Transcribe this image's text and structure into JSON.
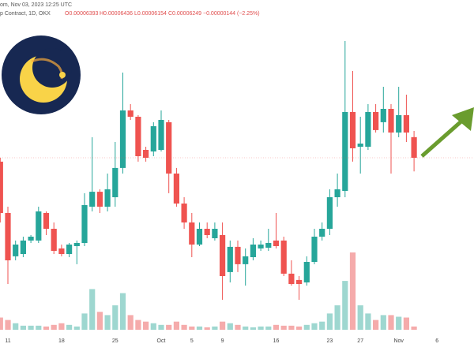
{
  "header": {
    "line1": "om, Nov 03, 2023 12:25 UTC",
    "line2": "p Contract, 1D, OKX",
    "open": "O0.00006393",
    "high": "H0.00006436",
    "low": "L0.00006154",
    "close": "C0.00006249",
    "change": "−0.00000144 (−2.25%)"
  },
  "chart_data": {
    "type": "candlestick",
    "categories": [
      null,
      "11",
      null,
      null,
      null,
      null,
      null,
      null,
      "18",
      null,
      null,
      null,
      null,
      null,
      null,
      "25",
      null,
      null,
      null,
      null,
      null,
      "Oct",
      null,
      null,
      null,
      "5",
      null,
      null,
      null,
      "9",
      null,
      null,
      null,
      null,
      null,
      null,
      "16",
      null,
      null,
      null,
      null,
      null,
      null,
      "23",
      null,
      null,
      null,
      "27",
      null,
      null,
      null,
      null,
      "Nov",
      null,
      null,
      null,
      null,
      "6"
    ],
    "open": [
      6.222e-05,
      5.864e-05,
      5.562e-05,
      5.578e-05,
      5.672e-05,
      5.672e-05,
      5.864e-05,
      5.754e-05,
      5.617e-05,
      5.578e-05,
      5.633e-05,
      5.655e-05,
      5.908e-05,
      6.012e-05,
      5.908e-05,
      5.974e-05,
      6.178e-05,
      6.579e-05,
      6.535e-05,
      6.304e-05,
      6.293e-05,
      6.304e-05,
      6.497e-05,
      6.139e-05,
      5.93e-05,
      5.798e-05,
      5.644e-05,
      5.754e-05,
      5.688e-05,
      5.71e-05,
      5.452e-05,
      5.628e-05,
      5.507e-05,
      5.556e-05,
      5.617e-05,
      5.622e-05,
      5.672e-05,
      5.672e-05,
      5.441e-05,
      5.397e-05,
      5.38e-05,
      5.523e-05,
      5.699e-05,
      5.754e-05,
      5.974e-05,
      6.018e-05,
      6.568e-05,
      6.326e-05,
      6.326e-05,
      6.568e-05,
      6.497e-05,
      6.59e-05,
      6.425e-05,
      6.546e-05,
      6.393e-05,
      null,
      null,
      null
    ],
    "high": [
      6.249e-05,
      5.908e-05,
      5.672e-05,
      5.699e-05,
      5.71e-05,
      5.908e-05,
      5.875e-05,
      5.798e-05,
      5.644e-05,
      5.655e-05,
      5.672e-05,
      6.002e-05,
      6.392e-05,
      6.029e-05,
      6.139e-05,
      6.359e-05,
      6.843e-05,
      6.623e-05,
      6.546e-05,
      6.326e-05,
      6.497e-05,
      6.579e-05,
      6.513e-05,
      6.178e-05,
      5.974e-05,
      5.864e-05,
      5.798e-05,
      5.798e-05,
      5.798e-05,
      5.798e-05,
      5.672e-05,
      5.672e-05,
      5.617e-05,
      5.688e-05,
      5.672e-05,
      5.754e-05,
      5.864e-05,
      5.699e-05,
      5.534e-05,
      5.424e-05,
      5.562e-05,
      5.754e-05,
      5.798e-05,
      6.029e-05,
      6.139e-05,
      7.063e-05,
      6.854e-05,
      6.535e-05,
      6.623e-05,
      6.623e-05,
      6.744e-05,
      6.623e-05,
      6.744e-05,
      6.689e-05,
      6.436e-05,
      null,
      null,
      null
    ],
    "low": [
      5.798e-05,
      5.369e-05,
      5.534e-05,
      5.556e-05,
      5.655e-05,
      5.655e-05,
      5.71e-05,
      5.578e-05,
      5.562e-05,
      5.556e-05,
      5.507e-05,
      5.633e-05,
      5.875e-05,
      5.864e-05,
      5.875e-05,
      5.908e-05,
      6.139e-05,
      6.513e-05,
      6.222e-05,
      6.222e-05,
      6.26e-05,
      6.293e-05,
      6.002e-05,
      5.908e-05,
      5.754e-05,
      5.556e-05,
      5.633e-05,
      5.688e-05,
      5.672e-05,
      5.259e-05,
      5.38e-05,
      5.452e-05,
      5.358e-05,
      5.534e-05,
      5.6e-05,
      5.6e-05,
      5.617e-05,
      5.424e-05,
      5.358e-05,
      5.259e-05,
      5.358e-05,
      5.507e-05,
      5.672e-05,
      5.71e-05,
      5.908e-05,
      5.974e-05,
      6.222e-05,
      6.139e-05,
      6.304e-05,
      6.425e-05,
      6.425e-05,
      6.139e-05,
      6.392e-05,
      6.359e-05,
      6.154e-05,
      null,
      null,
      null
    ],
    "close": [
      5.864e-05,
      5.534e-05,
      5.644e-05,
      5.672e-05,
      5.699e-05,
      5.875e-05,
      5.754e-05,
      5.6e-05,
      5.578e-05,
      5.644e-05,
      5.655e-05,
      5.919e-05,
      6.012e-05,
      5.908e-05,
      6.029e-05,
      6.178e-05,
      6.579e-05,
      6.535e-05,
      6.26e-05,
      6.249e-05,
      6.469e-05,
      6.513e-05,
      6.139e-05,
      5.93e-05,
      5.798e-05,
      5.644e-05,
      5.754e-05,
      5.71e-05,
      5.754e-05,
      5.424e-05,
      5.628e-05,
      5.507e-05,
      5.562e-05,
      5.644e-05,
      5.644e-05,
      5.655e-05,
      5.633e-05,
      5.441e-05,
      5.369e-05,
      5.369e-05,
      5.523e-05,
      5.699e-05,
      5.754e-05,
      5.974e-05,
      6.029e-05,
      6.568e-05,
      6.315e-05,
      6.348e-05,
      6.568e-05,
      6.442e-05,
      6.59e-05,
      6.425e-05,
      6.546e-05,
      6.425e-05,
      6.249e-05,
      null,
      null,
      null
    ],
    "volume": [
      15,
      12,
      8,
      5,
      5,
      5,
      4,
      6,
      8,
      6,
      4,
      20,
      50,
      22,
      18,
      30,
      45,
      18,
      12,
      10,
      8,
      6,
      6,
      10,
      6,
      4,
      4,
      3,
      4,
      10,
      8,
      6,
      4,
      3,
      4,
      4,
      6,
      5,
      5,
      4,
      6,
      8,
      10,
      20,
      30,
      60,
      95,
      30,
      20,
      12,
      18,
      18,
      16,
      15,
      4,
      null,
      null,
      null
    ],
    "up_color": "#26a69a",
    "down_color": "#ef5350",
    "volume_up_color": "#9ed7d0",
    "volume_down_color": "#f5abab",
    "ylim": [
      4.984e-05,
      7.349e-05
    ]
  }
}
